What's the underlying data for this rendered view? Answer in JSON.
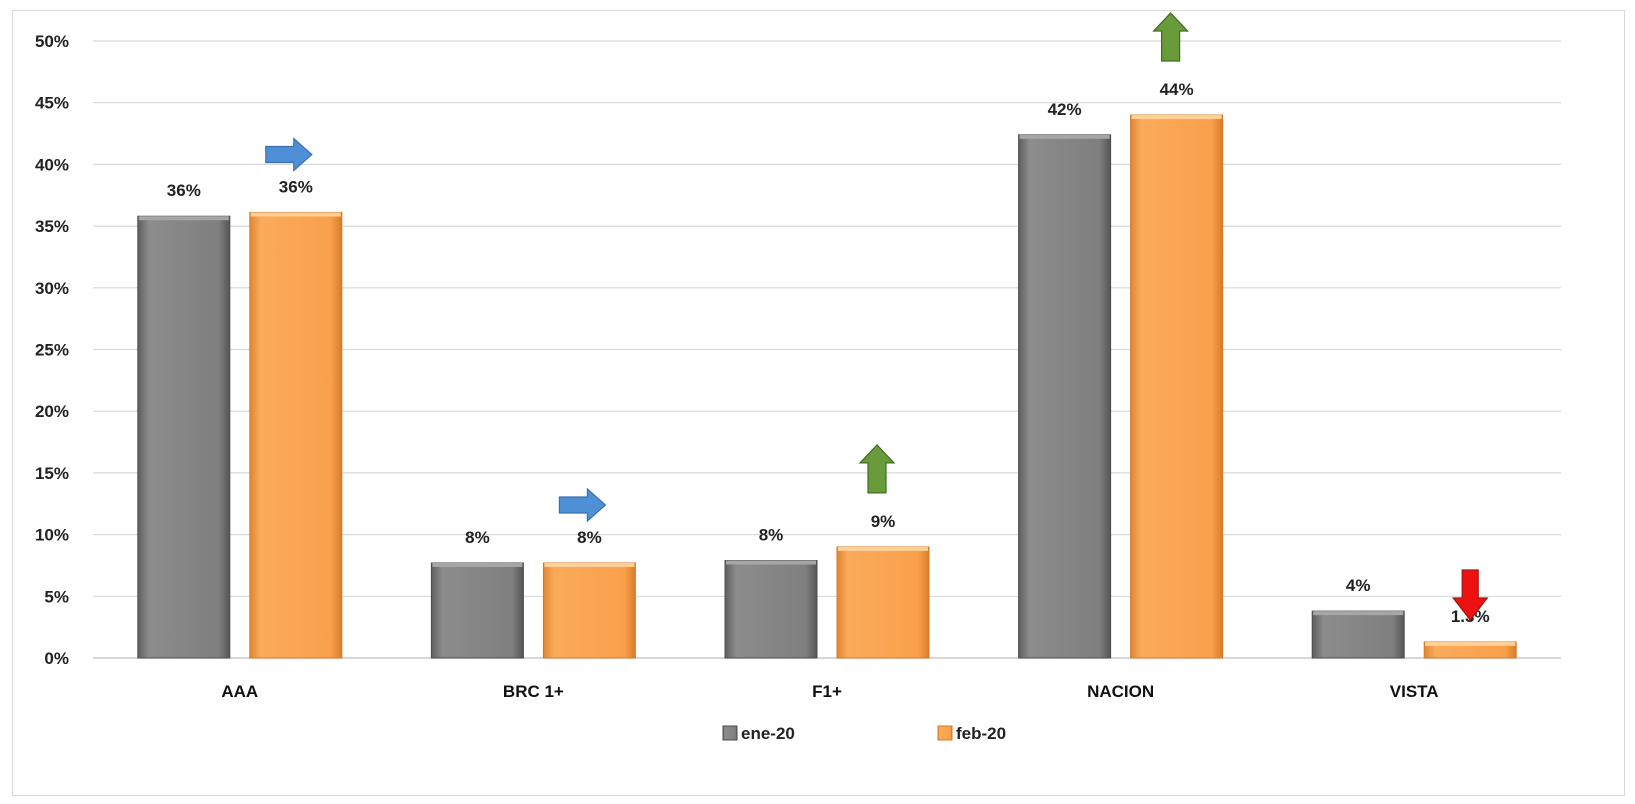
{
  "chart_data": {
    "type": "bar",
    "categories": [
      "AAA",
      "BRC 1+",
      "F1+",
      "NACION",
      "VISTA"
    ],
    "series": [
      {
        "name": "ene-20",
        "color": "#7f7f7f",
        "values": [
          35.8,
          7.7,
          7.9,
          42.4,
          3.8
        ],
        "labels": [
          "36%",
          "8%",
          "8%",
          "42%",
          "4%"
        ]
      },
      {
        "name": "feb-20",
        "color": "#f9a04b",
        "values": [
          36.1,
          7.7,
          9.0,
          44.0,
          1.3
        ],
        "labels": [
          "36%",
          "8%",
          "9%",
          "44%",
          "1.3%"
        ]
      }
    ],
    "trend_arrows": [
      {
        "category": "AAA",
        "direction": "right",
        "color": "#4f8fd6",
        "icon": "arrow-right-icon"
      },
      {
        "category": "BRC 1+",
        "direction": "right",
        "color": "#4f8fd6",
        "icon": "arrow-right-icon"
      },
      {
        "category": "F1+",
        "direction": "up",
        "color": "#6a9b3a",
        "icon": "arrow-up-icon"
      },
      {
        "category": "NACION",
        "direction": "up",
        "color": "#6a9b3a",
        "icon": "arrow-up-icon"
      },
      {
        "category": "VISTA",
        "direction": "down",
        "color": "#ee1111",
        "icon": "arrow-down-icon"
      }
    ],
    "ylim": [
      0,
      50
    ],
    "yticks": [
      0,
      5,
      10,
      15,
      20,
      25,
      30,
      35,
      40,
      45,
      50
    ],
    "ytick_labels": [
      "0%",
      "5%",
      "10%",
      "15%",
      "20%",
      "25%",
      "30%",
      "35%",
      "40%",
      "45%",
      "50%"
    ],
    "grid": true,
    "legend_position": "bottom"
  }
}
